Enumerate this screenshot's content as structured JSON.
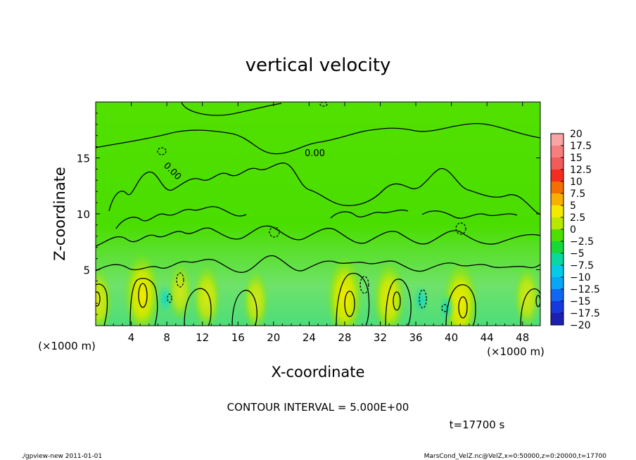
{
  "chart_data": {
    "type": "heatmap",
    "title": "vertical velocity",
    "xlabel": "X-coordinate",
    "ylabel": "Z-coordinate",
    "x_unit_label": "(×1000 m)",
    "y_unit_label": "(×1000 m)",
    "x_ticks": [
      4,
      8,
      12,
      16,
      20,
      24,
      28,
      32,
      36,
      40,
      44,
      48
    ],
    "y_ticks": [
      5,
      10,
      15
    ],
    "xlim": [
      0,
      50
    ],
    "ylim": [
      0,
      20
    ],
    "colorbar": {
      "ticks": [
        "20",
        "17.5",
        "15",
        "12.5",
        "10",
        "7.5",
        "5",
        "2.5",
        "0",
        "−2.5",
        "−5",
        "−7.5",
        "−10",
        "−12.5",
        "−15",
        "−17.5",
        "−20"
      ],
      "colors": [
        "#f9a5a5",
        "#f77e7e",
        "#f35a5a",
        "#f22c1e",
        "#f56e00",
        "#f8b000",
        "#f4ea00",
        "#b9e800",
        "#4ddf00",
        "#16d83a",
        "#0bd7a0",
        "#05cbe9",
        "#0aa6f6",
        "#1267f2",
        "#1638dd",
        "#1b20b0",
        "#6c1ca2"
      ]
    },
    "contour_interval": "CONTOUR INTERVAL = 5.000E+00",
    "contour_labels": [
      "0.00",
      "0.00"
    ],
    "plumes": [
      {
        "x": 0.3,
        "z": 2.2,
        "strength": 0.6
      },
      {
        "x": 5.2,
        "z": 2.8,
        "strength": 1.0
      },
      {
        "x": 9.5,
        "z": 3.0,
        "strength": 0.4
      },
      {
        "x": 12.5,
        "z": 2.5,
        "strength": 0.6
      },
      {
        "x": 18.0,
        "z": 2.2,
        "strength": 0.5
      },
      {
        "x": 28.0,
        "z": 2.5,
        "strength": 1.0
      },
      {
        "x": 33.0,
        "z": 2.4,
        "strength": 0.8
      },
      {
        "x": 41.0,
        "z": 2.0,
        "strength": 1.0
      },
      {
        "x": 48.5,
        "z": 2.5,
        "strength": 0.5
      }
    ],
    "downdrafts": [
      {
        "x": 36.6,
        "z": 2.3
      },
      {
        "x": 7.8,
        "z": 2.4
      },
      {
        "x": 39.5,
        "z": 1.6
      }
    ]
  },
  "footer": {
    "time_label": "t=17700 s",
    "left_note": "./gpview-new  2011-01-01",
    "right_note": "MarsCond_VelZ.nc@VelZ,x=0:50000,z=0:20000,t=17700"
  }
}
